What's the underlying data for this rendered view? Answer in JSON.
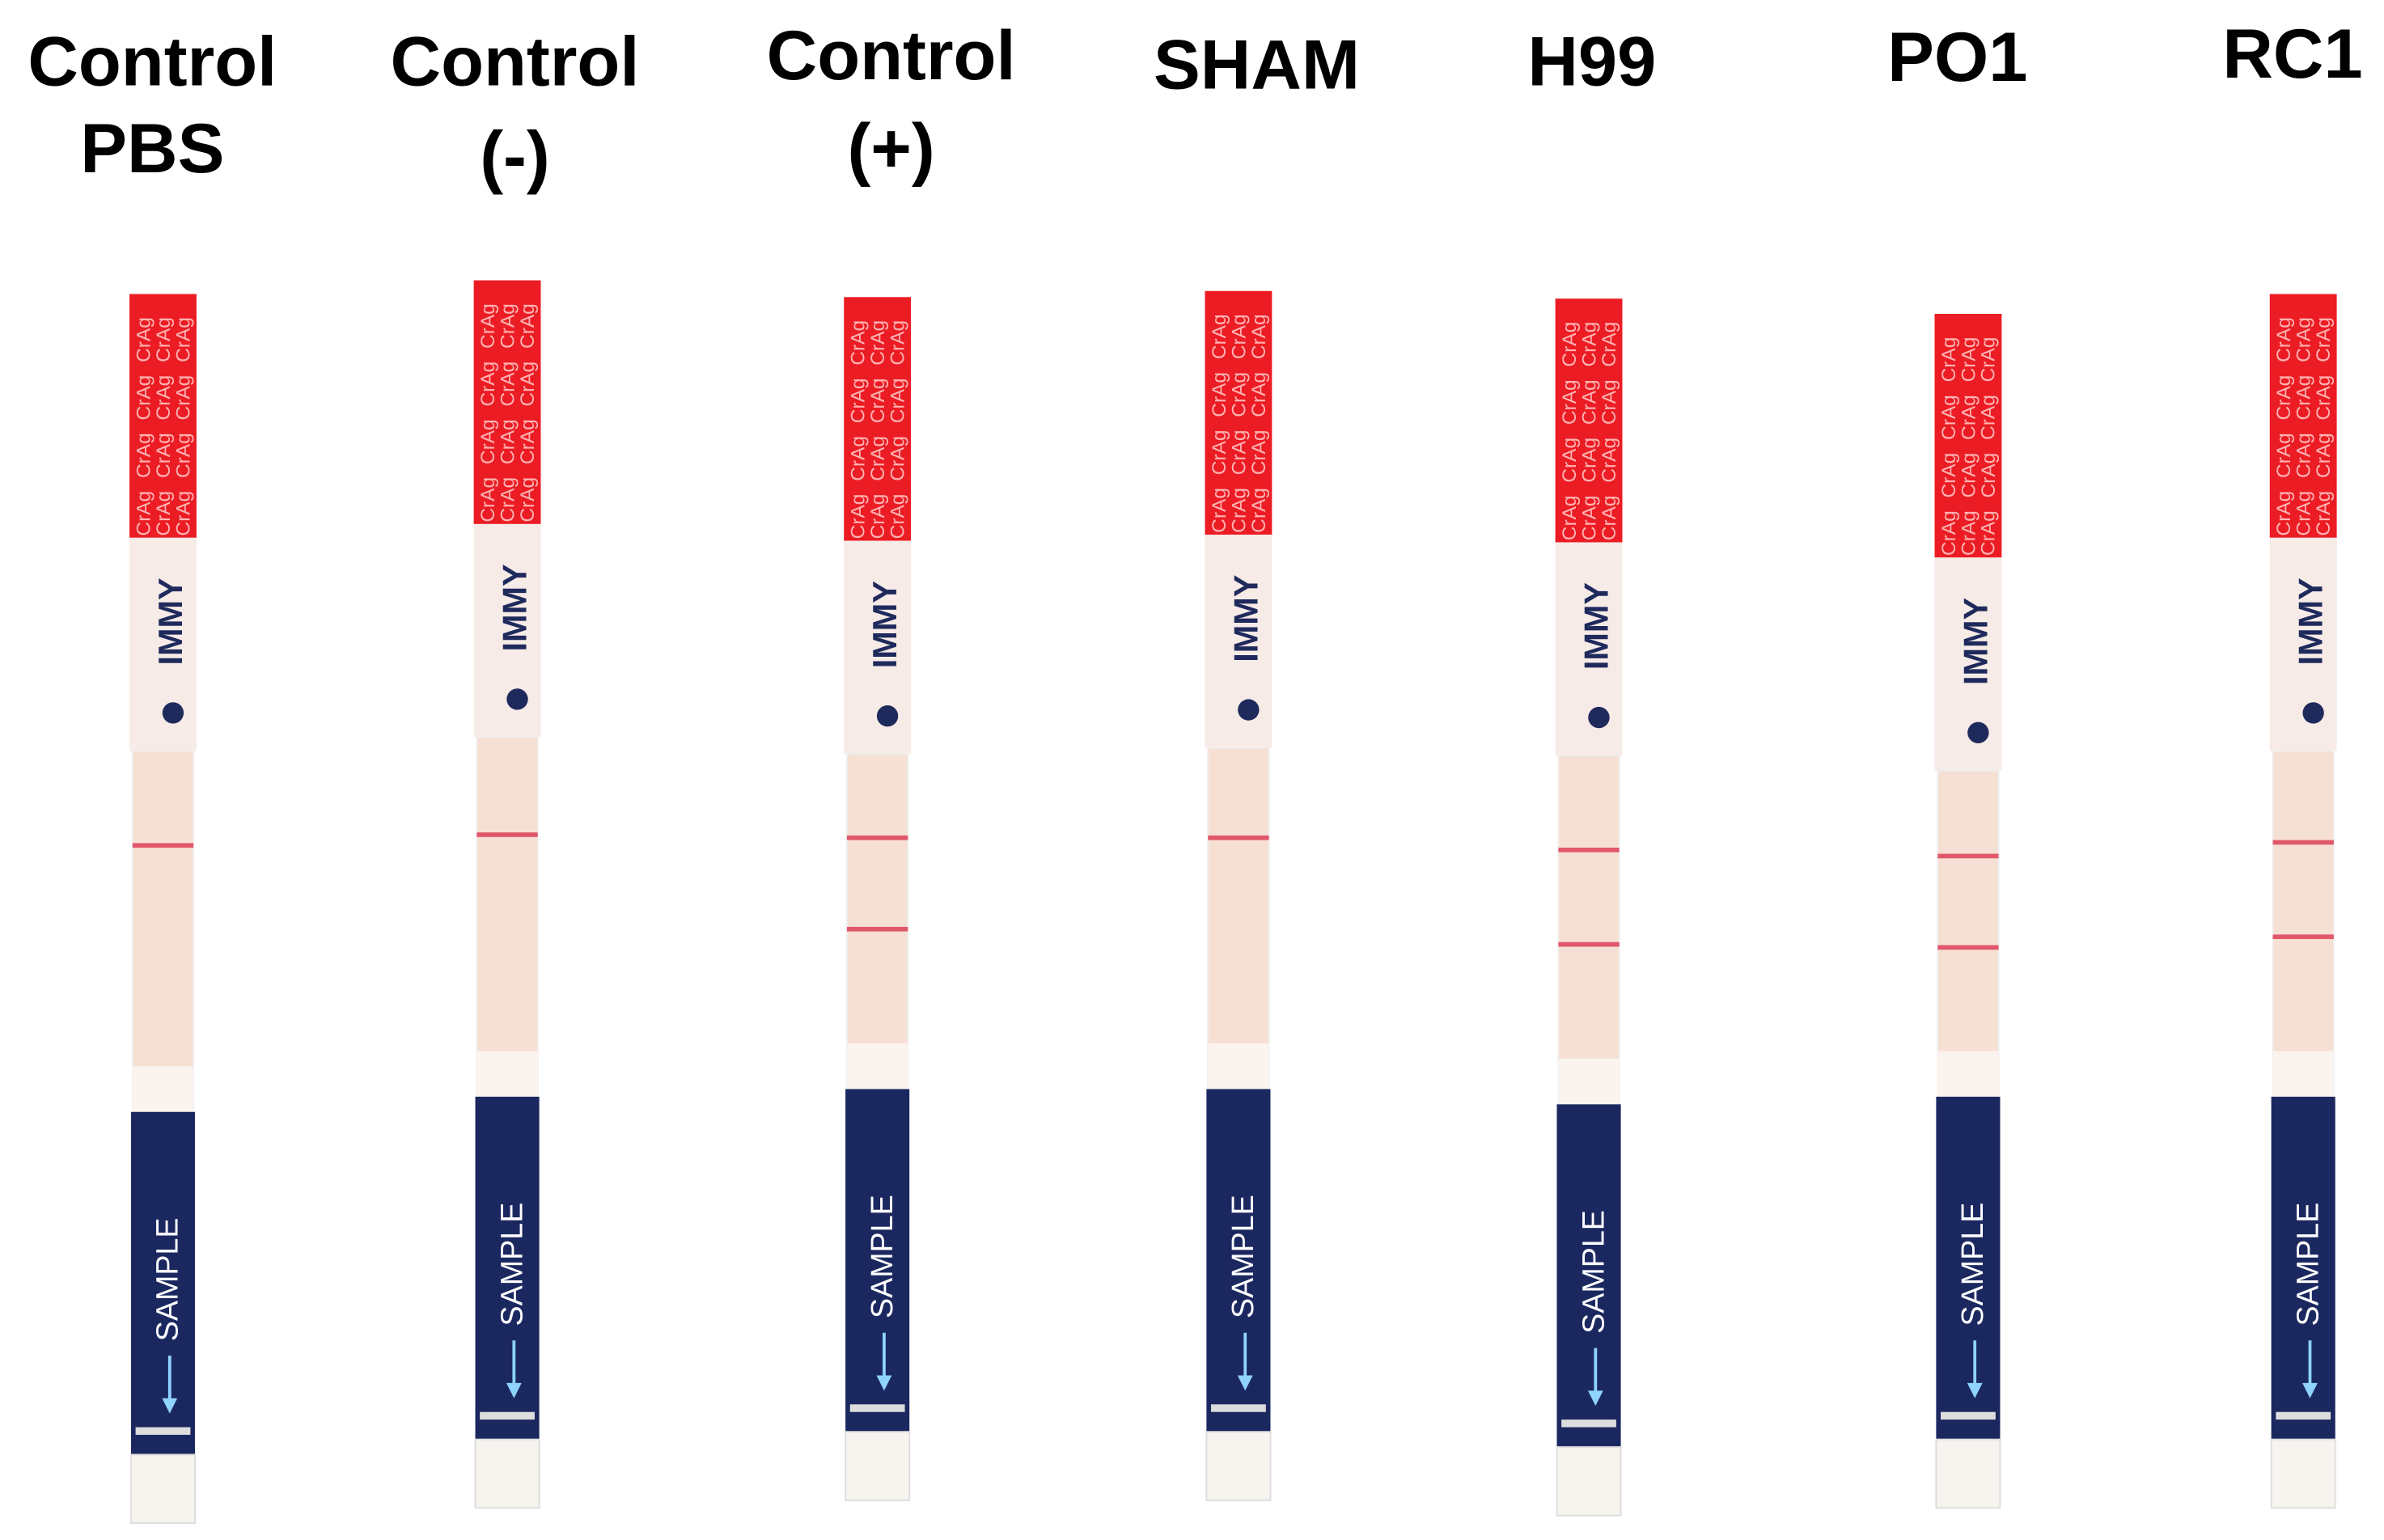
{
  "strips": [
    {
      "label": [
        "Control",
        "PBS"
      ]
    },
    {
      "label": [
        "Control",
        "(-)"
      ]
    },
    {
      "label": [
        "Control",
        "(+)"
      ]
    },
    {
      "label": [
        "SHAM"
      ]
    },
    {
      "label": [
        "H99"
      ]
    },
    {
      "label": [
        "PO1"
      ]
    },
    {
      "label": [
        "RC1"
      ]
    }
  ],
  "strip_text": {
    "cap": "CrAg",
    "brand": "IMMY",
    "sample": "SAMPLE"
  }
}
